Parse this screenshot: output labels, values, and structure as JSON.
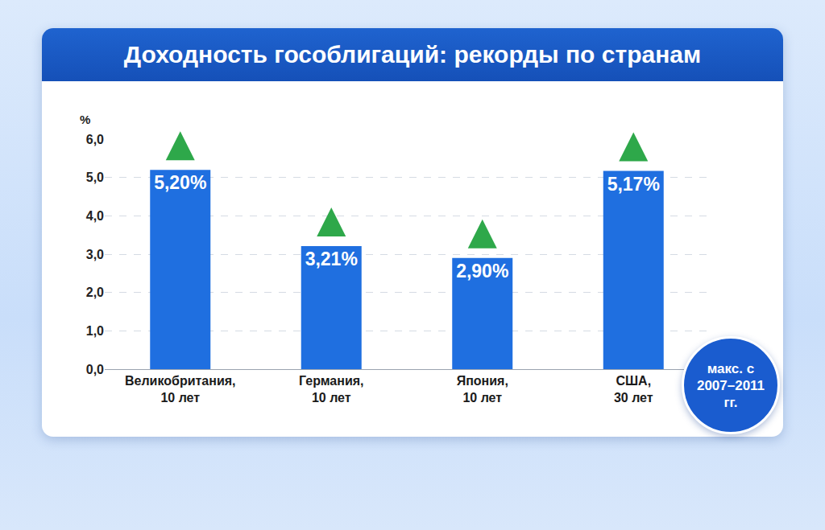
{
  "chart_data": {
    "type": "bar",
    "title": "Доходность гособлигаций: рекорды по странам",
    "ylabel": "%",
    "categories": [
      "Великобритания, 10 лет",
      "Германия, 10 лет",
      "Япония, 10 лет",
      "США, 30 лет"
    ],
    "values": [
      5.2,
      3.21,
      2.9,
      5.17
    ],
    "value_labels": [
      "5,20%",
      "3,21%",
      "2,90%",
      "5,17%"
    ],
    "color": "#1f6fe0",
    "ylim": [
      0,
      6
    ],
    "yticks": [
      {
        "value": 0,
        "label": "0,0"
      },
      {
        "value": 1,
        "label": "1,0"
      },
      {
        "value": 2,
        "label": "2,0"
      },
      {
        "value": 3,
        "label": "3,0"
      },
      {
        "value": 4,
        "label": "4,0"
      },
      {
        "value": 5,
        "label": "5,0"
      },
      {
        "value": 6,
        "label": "6,0"
      }
    ],
    "grid": true,
    "data_labels": true,
    "annotation": "макс. с 2007–2011 гг."
  }
}
